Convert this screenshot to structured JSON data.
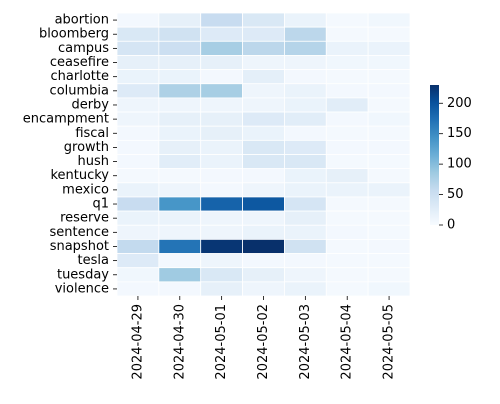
{
  "chart_data": {
    "type": "heatmap",
    "title": "",
    "xlabel": "",
    "ylabel": "",
    "x_categories": [
      "2024-04-29",
      "2024-04-30",
      "2024-05-01",
      "2024-05-02",
      "2024-05-03",
      "2024-05-04",
      "2024-05-05"
    ],
    "y_categories": [
      "abortion",
      "bloomberg",
      "campus",
      "ceasefire",
      "charlotte",
      "columbia",
      "derby",
      "encampment",
      "fiscal",
      "growth",
      "hush",
      "kentucky",
      "mexico",
      "q1",
      "reserve",
      "sentence",
      "snapshot",
      "tesla",
      "tuesday",
      "violence"
    ],
    "values": [
      [
        5,
        20,
        55,
        35,
        15,
        3,
        8
      ],
      [
        35,
        45,
        30,
        30,
        65,
        3,
        3
      ],
      [
        40,
        50,
        80,
        65,
        70,
        15,
        15
      ],
      [
        20,
        20,
        20,
        10,
        10,
        8,
        8
      ],
      [
        15,
        15,
        5,
        22,
        5,
        3,
        3
      ],
      [
        30,
        75,
        80,
        10,
        15,
        5,
        5
      ],
      [
        10,
        10,
        10,
        10,
        15,
        25,
        3
      ],
      [
        10,
        20,
        20,
        30,
        25,
        5,
        8
      ],
      [
        5,
        15,
        20,
        15,
        5,
        3,
        3
      ],
      [
        5,
        20,
        15,
        35,
        30,
        5,
        5
      ],
      [
        5,
        25,
        15,
        35,
        35,
        3,
        3
      ],
      [
        3,
        3,
        5,
        5,
        15,
        20,
        3
      ],
      [
        15,
        10,
        5,
        10,
        15,
        15,
        15
      ],
      [
        55,
        140,
        185,
        195,
        40,
        3,
        3
      ],
      [
        15,
        15,
        10,
        10,
        20,
        3,
        3
      ],
      [
        10,
        10,
        10,
        15,
        15,
        5,
        3
      ],
      [
        60,
        170,
        225,
        230,
        45,
        3,
        5
      ],
      [
        30,
        5,
        10,
        5,
        5,
        3,
        3
      ],
      [
        8,
        85,
        35,
        20,
        10,
        3,
        3
      ],
      [
        5,
        5,
        20,
        10,
        15,
        3,
        8
      ]
    ],
    "colormap": "Blues",
    "vmin": 0,
    "vmax": 230,
    "colorbar_ticks": [
      0,
      50,
      100,
      150,
      200
    ],
    "grid": false,
    "legend": "colorbar-right"
  }
}
